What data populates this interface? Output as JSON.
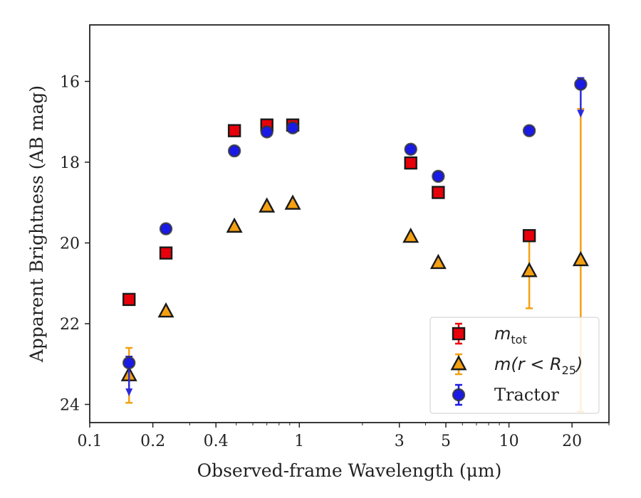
{
  "chart_data": {
    "type": "scatter",
    "title": "",
    "xlabel": "Observed-frame Wavelength (μm)",
    "ylabel": "Apparent Brightness (AB mag)",
    "xscale": "log",
    "xlim": [
      0.1,
      30
    ],
    "ylim": [
      24.45,
      14.6
    ],
    "y_inverted": true,
    "xticks": [
      0.1,
      0.2,
      0.4,
      1,
      3,
      5,
      10,
      20
    ],
    "xtick_labels": [
      "0.1",
      "0.2",
      "0.4",
      "1",
      "3",
      "5",
      "10",
      "20"
    ],
    "yticks": [
      16,
      18,
      20,
      22,
      24
    ],
    "ytick_labels": [
      "16",
      "18",
      "20",
      "22",
      "24"
    ],
    "grid": false,
    "legend_position": "lower right",
    "legend": [
      {
        "label_main": "m",
        "label_sub": "tot",
        "marker": "square",
        "color": "#e8000b"
      },
      {
        "label_main": "m(r < R",
        "label_sub": "25",
        "label_close": ")",
        "marker": "triangle",
        "color": "#f4a011"
      },
      {
        "label_main": "Tractor",
        "label_sub": "",
        "marker": "circle",
        "color": "#1a1ae6"
      }
    ],
    "series": [
      {
        "name": "m_tot",
        "marker": "square",
        "color": "#e8000b",
        "points": [
          {
            "x": 0.154,
            "y": 21.4
          },
          {
            "x": 0.231,
            "y": 20.25
          },
          {
            "x": 0.49,
            "y": 17.22
          },
          {
            "x": 0.7,
            "y": 17.08
          },
          {
            "x": 0.93,
            "y": 17.08
          },
          {
            "x": 3.4,
            "y": 18.02
          },
          {
            "x": 4.6,
            "y": 18.75
          },
          {
            "x": 12.5,
            "y": 19.82,
            "err_low": 0,
            "err_high": 0
          }
        ]
      },
      {
        "name": "m(r<R25)",
        "marker": "triangle",
        "color": "#f4a011",
        "points": [
          {
            "x": 0.154,
            "y": 23.28,
            "err_low": 0.68,
            "err_high": 0.68
          },
          {
            "x": 0.231,
            "y": 21.7
          },
          {
            "x": 0.49,
            "y": 19.6
          },
          {
            "x": 0.7,
            "y": 19.1
          },
          {
            "x": 0.93,
            "y": 19.03
          },
          {
            "x": 3.4,
            "y": 19.85
          },
          {
            "x": 4.6,
            "y": 20.5
          },
          {
            "x": 12.5,
            "y": 20.7,
            "err_low": 0.92,
            "err_high": 0.92
          },
          {
            "x": 22.0,
            "y": 20.43,
            "err_low": 3.75,
            "err_high": 3.75
          }
        ]
      },
      {
        "name": "Tractor",
        "marker": "circle",
        "color": "#1a1ae6",
        "points": [
          {
            "x": 0.154,
            "y": 22.97,
            "upper_limit": true
          },
          {
            "x": 0.231,
            "y": 19.65
          },
          {
            "x": 0.49,
            "y": 17.72
          },
          {
            "x": 0.7,
            "y": 17.25
          },
          {
            "x": 0.93,
            "y": 17.15
          },
          {
            "x": 3.4,
            "y": 17.68
          },
          {
            "x": 4.6,
            "y": 18.35
          },
          {
            "x": 12.5,
            "y": 17.22
          },
          {
            "x": 22.0,
            "y": 16.07,
            "upper_limit": true
          }
        ]
      }
    ]
  }
}
